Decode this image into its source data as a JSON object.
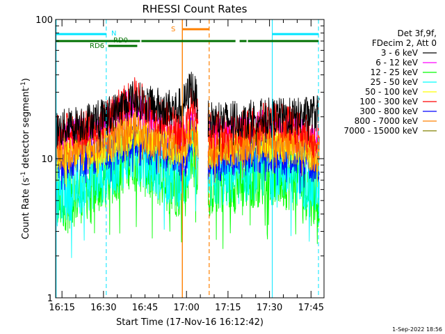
{
  "chart_data": {
    "type": "line",
    "title": "RHESSI Count Rates",
    "xlabel": "Start Time (17-Nov-16 16:12:42)",
    "ylabel": "Count Rate (s",
    "ylabel_sup1": "-1",
    "ylabel_mid": " detector segment",
    "ylabel_sup2": "-1",
    "ylabel_end": ")",
    "yscale": "log",
    "ylim": [
      1,
      100
    ],
    "ytick_labels": [
      "1",
      "10",
      "100"
    ],
    "xlim_minutes": [
      0,
      97
    ],
    "xtick_labels": [
      "16:15",
      "16:30",
      "16:45",
      "17:00",
      "17:15",
      "17:30",
      "17:45"
    ],
    "xtick_minutes": [
      2.3,
      17.3,
      32.3,
      47.3,
      62.3,
      77.3,
      92.3
    ],
    "data_gap_minutes": [
      51.5,
      53.5
    ],
    "legend_header": [
      "Det 3f,9f,",
      "FDecim 2, Att 0"
    ],
    "series": [
      {
        "name": "3 - 6 keV",
        "color": "#000000",
        "profile": [
          [
            0,
            16
          ],
          [
            17,
            20
          ],
          [
            22,
            22
          ],
          [
            28,
            27
          ],
          [
            35,
            24
          ],
          [
            44,
            23
          ],
          [
            47,
            26
          ],
          [
            49,
            34
          ],
          [
            54,
            19
          ],
          [
            66,
            19
          ],
          [
            76,
            20
          ],
          [
            88,
            20
          ],
          [
            93,
            21
          ]
        ]
      },
      {
        "name": "6 - 12 keV",
        "color": "#ff00ff",
        "profile": [
          [
            0,
            13
          ],
          [
            17,
            16
          ],
          [
            22,
            20
          ],
          [
            28,
            24
          ],
          [
            35,
            18
          ],
          [
            44,
            14
          ],
          [
            47,
            13
          ],
          [
            49,
            20
          ],
          [
            54,
            14
          ],
          [
            66,
            15
          ],
          [
            76,
            17
          ],
          [
            88,
            15
          ],
          [
            93,
            13
          ]
        ]
      },
      {
        "name": "12 - 25 keV",
        "color": "#00ff00",
        "profile": [
          [
            0,
            4.8
          ],
          [
            17,
            7
          ],
          [
            22,
            8.5
          ],
          [
            28,
            11
          ],
          [
            35,
            8
          ],
          [
            44,
            6.5
          ],
          [
            47,
            6.5
          ],
          [
            49,
            12
          ],
          [
            54,
            6.5
          ],
          [
            66,
            7
          ],
          [
            76,
            8
          ],
          [
            88,
            7
          ],
          [
            93,
            5.5
          ]
        ]
      },
      {
        "name": "25 - 50 keV",
        "color": "#00ffff",
        "profile": [
          [
            0,
            5.5
          ],
          [
            17,
            8
          ],
          [
            22,
            9.5
          ],
          [
            28,
            12
          ],
          [
            35,
            9
          ],
          [
            44,
            7.5
          ],
          [
            47,
            7.5
          ],
          [
            49,
            13
          ],
          [
            54,
            7
          ],
          [
            66,
            8
          ],
          [
            76,
            9
          ],
          [
            88,
            8
          ],
          [
            93,
            6.5
          ]
        ]
      },
      {
        "name": "50 - 100 keV",
        "color": "#ffff00",
        "profile": [
          [
            0,
            10
          ],
          [
            17,
            12
          ],
          [
            22,
            13
          ],
          [
            28,
            16
          ],
          [
            35,
            13
          ],
          [
            44,
            12
          ],
          [
            47,
            12
          ],
          [
            49,
            16
          ],
          [
            54,
            11
          ],
          [
            66,
            12
          ],
          [
            76,
            13
          ],
          [
            88,
            12
          ],
          [
            93,
            11
          ]
        ]
      },
      {
        "name": "100 - 300 keV",
        "color": "#ff0000",
        "profile": [
          [
            0,
            15
          ],
          [
            17,
            18
          ],
          [
            22,
            22
          ],
          [
            28,
            29
          ],
          [
            35,
            22
          ],
          [
            44,
            17
          ],
          [
            47,
            16
          ],
          [
            49,
            24
          ],
          [
            54,
            16
          ],
          [
            66,
            16
          ],
          [
            76,
            19
          ],
          [
            88,
            17
          ],
          [
            93,
            14
          ]
        ]
      },
      {
        "name": "300 - 800 keV",
        "color": "#0000ff",
        "profile": [
          [
            0,
            9
          ],
          [
            17,
            11
          ],
          [
            22,
            12
          ],
          [
            28,
            14
          ],
          [
            35,
            12
          ],
          [
            44,
            10.5
          ],
          [
            47,
            10
          ],
          [
            49,
            15
          ],
          [
            54,
            9
          ],
          [
            66,
            10
          ],
          [
            76,
            11
          ],
          [
            88,
            10
          ],
          [
            93,
            9
          ]
        ]
      },
      {
        "name": "800 - 7000 keV",
        "color": "#ff8000",
        "profile": [
          [
            0,
            11
          ],
          [
            17,
            13
          ],
          [
            22,
            14
          ],
          [
            28,
            17
          ],
          [
            35,
            14
          ],
          [
            44,
            13
          ],
          [
            47,
            12.5
          ],
          [
            49,
            17
          ],
          [
            54,
            11.5
          ],
          [
            66,
            12.5
          ],
          [
            76,
            14
          ],
          [
            88,
            13
          ],
          [
            93,
            11
          ]
        ]
      },
      {
        "name": "7000 - 15000 keV",
        "color": "#808000",
        "profile": []
      }
    ],
    "annotations": {
      "vlines_cyan_solid_minutes": [
        0.2,
        78.3
      ],
      "vlines_cyan_dashed_minutes": [
        18.3,
        95.0
      ],
      "vline_orange_solid_minutes": 45.8,
      "vline_orange_dashed_minutes": 55.5,
      "labels": [
        "N",
        "RD0",
        "RD6",
        "S"
      ],
      "cyan_bar_segments_minutes": [
        [
          0.2,
          18.3
        ],
        [
          78.3,
          95.0
        ]
      ],
      "green_bar_segments_minutes": [
        [
          0.2,
          30.5
        ],
        [
          31,
          65
        ],
        [
          66.5,
          69
        ],
        [
          69.5,
          95
        ]
      ],
      "green_bar2_segment_minutes": [
        19,
        29.5
      ],
      "orange_bar_segment_minutes": [
        45.8,
        55.5
      ]
    }
  },
  "footer_date": "1-Sep-2022 18:56"
}
